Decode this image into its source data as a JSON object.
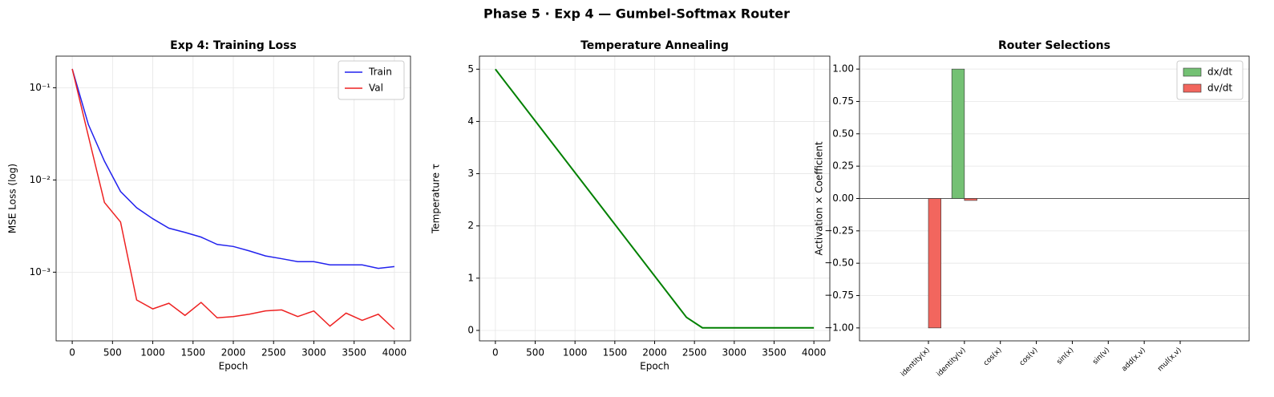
{
  "title": "Phase 5 · Exp 4 — Gumbel-Softmax Router",
  "chart_data": [
    {
      "type": "line",
      "title": "Exp 4: Training Loss",
      "xlabel": "Epoch",
      "ylabel": "MSE Loss (log)",
      "x": [
        0,
        200,
        400,
        600,
        800,
        1000,
        1200,
        1400,
        1600,
        1800,
        2000,
        2200,
        2400,
        2600,
        2800,
        3000,
        3200,
        3400,
        3600,
        3800,
        4000
      ],
      "series": [
        {
          "name": "Train",
          "color": "#2222ee",
          "values": [
            0.16,
            0.04,
            0.016,
            0.0075,
            0.005,
            0.0038,
            0.003,
            0.0027,
            0.0024,
            0.002,
            0.0019,
            0.0017,
            0.0015,
            0.0014,
            0.0013,
            0.0013,
            0.0012,
            0.0012,
            0.0012,
            0.0011,
            0.00115
          ]
        },
        {
          "name": "Val",
          "color": "#ee2222",
          "values": [
            0.16,
            0.03,
            0.0057,
            0.0035,
            0.0005,
            0.0004,
            0.00046,
            0.00034,
            0.00047,
            0.00032,
            0.00033,
            0.00035,
            0.00038,
            0.00039,
            0.00033,
            0.00038,
            0.00026,
            0.00036,
            0.0003,
            0.00035,
            0.00024
          ]
        }
      ],
      "yscale": "log",
      "xlim": [
        -200,
        4200
      ],
      "ylim": [
        0.00018,
        0.22
      ],
      "xticks": [
        0,
        500,
        1000,
        1500,
        2000,
        2500,
        3000,
        3500,
        4000
      ],
      "yticks": [
        {
          "value": 0.001,
          "label": "10⁻³"
        },
        {
          "value": 0.01,
          "label": "10⁻²"
        },
        {
          "value": 0.1,
          "label": "10⁻¹"
        }
      ],
      "grid": "both",
      "legend": "upper right"
    },
    {
      "type": "line",
      "title": "Temperature Annealing",
      "xlabel": "Epoch",
      "ylabel": "Temperature τ",
      "x": [
        0,
        2400,
        2600,
        4000
      ],
      "values": [
        5,
        0.25,
        0.05,
        0.05
      ],
      "color": "#008000",
      "xlim": [
        -200,
        4200
      ],
      "ylim": [
        -0.2,
        5.25
      ],
      "xticks": [
        0,
        500,
        1000,
        1500,
        2000,
        2500,
        3000,
        3500,
        4000
      ],
      "yticks": [
        0,
        1,
        2,
        3,
        4,
        5
      ],
      "grid": "both"
    },
    {
      "type": "bar",
      "title": "Router Selections",
      "ylabel": "Activation × Coefficient",
      "categories": [
        "identity(x)",
        "identity(v)",
        "cos(x)",
        "cos(v)",
        "sin(x)",
        "sin(v)",
        "add(x,v)",
        "mul(x,v)"
      ],
      "series": [
        {
          "name": "dx/dt",
          "color": "#74c174",
          "values": [
            0,
            1,
            0,
            0,
            0,
            0,
            0,
            0
          ]
        },
        {
          "name": "dv/dt",
          "color": "#f2665e",
          "values": [
            -1,
            -0.015,
            0,
            0,
            0,
            0,
            0,
            0
          ]
        }
      ],
      "ylim": [
        -1.1,
        1.1
      ],
      "yticks": [
        {
          "value": -1,
          "label": "−1.00"
        },
        {
          "value": -0.75,
          "label": "−0.75"
        },
        {
          "value": -0.5,
          "label": "−0.50"
        },
        {
          "value": -0.25,
          "label": "−0.25"
        },
        {
          "value": 0,
          "label": "0.00"
        },
        {
          "value": 0.25,
          "label": "0.25"
        },
        {
          "value": 0.5,
          "label": "0.50"
        },
        {
          "value": 0.75,
          "label": "0.75"
        },
        {
          "value": 1,
          "label": "1.00"
        }
      ],
      "grid": "y",
      "zero_line": true,
      "legend": "upper right"
    }
  ]
}
